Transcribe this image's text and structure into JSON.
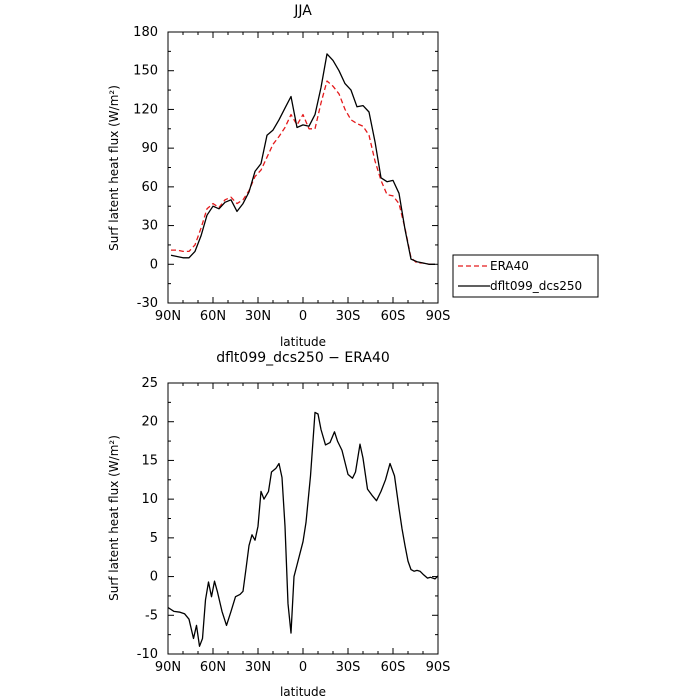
{
  "chart_data": [
    {
      "type": "line",
      "title": "JJA",
      "xlabel": "latitude",
      "ylabel": "Surf latent heat flux (W/m²)",
      "xlim": [
        90,
        -90
      ],
      "ylim": [
        -30,
        180
      ],
      "x_ticks": [
        90,
        60,
        30,
        0,
        -30,
        -60,
        -90
      ],
      "x_tick_labels": [
        "90N",
        "60N",
        "30N",
        "0",
        "30S",
        "60S",
        "90S"
      ],
      "y_ticks": [
        -30,
        0,
        30,
        60,
        90,
        120,
        150,
        180
      ],
      "legend": {
        "placement": "right-outside",
        "entries": [
          "ERA40",
          "dflt099_dcs250"
        ]
      },
      "series": [
        {
          "name": "ERA40",
          "color": "#e41a1c",
          "dash": "dashed",
          "x": [
            88,
            84,
            80,
            76,
            72,
            68,
            64,
            60,
            56,
            52,
            48,
            44,
            40,
            36,
            32,
            28,
            24,
            20,
            16,
            12,
            8,
            4,
            0,
            -4,
            -8,
            -12,
            -16,
            -20,
            -24,
            -28,
            -32,
            -36,
            -40,
            -44,
            -48,
            -52,
            -56,
            -60,
            -64,
            -68,
            -72,
            -76,
            -80,
            -84,
            -88
          ],
          "y": [
            11,
            11,
            10,
            10,
            15,
            28,
            43,
            47,
            44,
            50,
            52,
            47,
            50,
            57,
            68,
            73,
            83,
            93,
            99,
            106,
            116,
            108,
            116,
            105,
            105,
            125,
            142,
            138,
            132,
            120,
            112,
            109,
            107,
            100,
            80,
            65,
            54,
            53,
            47,
            28,
            5,
            1,
            1,
            0,
            0
          ]
        },
        {
          "name": "dflt099_dcs250",
          "color": "#000000",
          "dash": "solid",
          "x": [
            88,
            84,
            80,
            76,
            72,
            68,
            64,
            60,
            56,
            52,
            48,
            44,
            40,
            36,
            32,
            28,
            24,
            20,
            16,
            12,
            8,
            4,
            0,
            -4,
            -8,
            -12,
            -16,
            -20,
            -24,
            -28,
            -32,
            -36,
            -40,
            -44,
            -48,
            -52,
            -56,
            -60,
            -64,
            -68,
            -72,
            -76,
            -80,
            -84,
            -88
          ],
          "y": [
            7,
            6,
            5,
            5,
            10,
            22,
            38,
            45,
            43,
            48,
            50,
            41,
            47,
            56,
            72,
            78,
            100,
            104,
            112,
            121,
            130,
            106,
            108,
            107,
            116,
            137,
            163,
            158,
            150,
            140,
            135,
            122,
            123,
            118,
            95,
            67,
            64,
            65,
            55,
            27,
            4,
            2,
            1,
            0,
            0
          ]
        }
      ]
    },
    {
      "type": "line",
      "title": "dflt099_dcs250 − ERA40",
      "xlabel": "latitude",
      "ylabel": "Surf latent heat flux (W/m²)",
      "xlim": [
        90,
        -90
      ],
      "ylim": [
        -10,
        25
      ],
      "x_ticks": [
        90,
        60,
        30,
        0,
        -30,
        -60,
        -90
      ],
      "x_tick_labels": [
        "90N",
        "60N",
        "30N",
        "0",
        "30S",
        "60S",
        "90S"
      ],
      "y_ticks": [
        -10,
        -5,
        0,
        5,
        10,
        15,
        20,
        25
      ],
      "series": [
        {
          "color": "#000000",
          "dash": "solid",
          "x": [
            90,
            86,
            82,
            79,
            76,
            73,
            71,
            69,
            67,
            65,
            63,
            61,
            59,
            57,
            54,
            51,
            48,
            45,
            42,
            40,
            38,
            36,
            34,
            32,
            30,
            28,
            26,
            23,
            21,
            18,
            16,
            14,
            12,
            10,
            8,
            6,
            4,
            2,
            0,
            -2,
            -5,
            -8,
            -10,
            -12,
            -15,
            -18,
            -21,
            -23,
            -26,
            -30,
            -33,
            -35,
            -38,
            -40,
            -43,
            -46,
            -49,
            -52,
            -55,
            -58,
            -61,
            -64,
            -66,
            -68,
            -70,
            -72,
            -74,
            -76,
            -78,
            -80,
            -83,
            -85,
            -88,
            -90
          ],
          "y": [
            -4,
            -4.5,
            -4.6,
            -4.8,
            -5.5,
            -8,
            -6.3,
            -9,
            -8,
            -3,
            -0.7,
            -2.6,
            -0.6,
            -2,
            -4.5,
            -6.3,
            -4.5,
            -2.6,
            -2.3,
            -1.9,
            1,
            4,
            5.4,
            4.7,
            6.5,
            11,
            10,
            11,
            13.5,
            14,
            14.6,
            12.8,
            6.5,
            -3.5,
            -7.3,
            0,
            1.5,
            3,
            4.5,
            7,
            13,
            21.2,
            21,
            19,
            17,
            17.3,
            18.7,
            17.5,
            16.3,
            13.2,
            12.7,
            13.5,
            17.1,
            15.3,
            11.3,
            10.5,
            9.8,
            11,
            12.5,
            14.6,
            13,
            8.8,
            6.2,
            4,
            2,
            0.9,
            0.7,
            0.8,
            0.7,
            0.3,
            -0.2,
            -0.1,
            -0.3,
            0.1
          ]
        }
      ]
    }
  ]
}
